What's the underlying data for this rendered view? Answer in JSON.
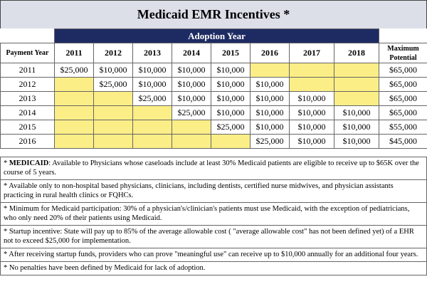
{
  "title": "Medicaid EMR Incentives *",
  "table": {
    "adoption_header": "Adoption Year",
    "payment_year_header": "Payment Year",
    "maximum_potential_header": "Maximum Potential",
    "adoption_years": [
      "2011",
      "2012",
      "2013",
      "2014",
      "2015",
      "2016",
      "2017",
      "2018"
    ],
    "rows": [
      {
        "year": "2011",
        "cells": [
          "$25,000",
          "$10,000",
          "$10,000",
          "$10,000",
          "$10,000",
          "",
          "",
          ""
        ],
        "max": "$65,000"
      },
      {
        "year": "2012",
        "cells": [
          "",
          "$25,000",
          "$10,000",
          "$10,000",
          "$10,000",
          "$10,000",
          "",
          ""
        ],
        "max": "$65,000"
      },
      {
        "year": "2013",
        "cells": [
          "",
          "",
          "$25,000",
          "$10,000",
          "$10,000",
          "$10,000",
          "$10,000",
          ""
        ],
        "max": "$65,000"
      },
      {
        "year": "2014",
        "cells": [
          "",
          "",
          "",
          "$25,000",
          "$10,000",
          "$10,000",
          "$10,000",
          "$10,000"
        ],
        "max": "$65,000"
      },
      {
        "year": "2015",
        "cells": [
          "",
          "",
          "",
          "",
          "$25,000",
          "$10,000",
          "$10,000",
          "$10,000"
        ],
        "max": "$55,000"
      },
      {
        "year": "2016",
        "cells": [
          "",
          "",
          "",
          "",
          "",
          "$25,000",
          "$10,000",
          "$10,000"
        ],
        "max": "$45,000"
      }
    ]
  },
  "notes": [
    {
      "prefix": "* ",
      "bold": "MEDICAID",
      "text": ": Available to Physicians whose caseloads include at least 30% Medicaid patients are eligible to receive up to $65K over the course of 5 years."
    },
    {
      "prefix": "* ",
      "bold": "",
      "text": "Available only to non-hospital based physicians, clinicians, including dentists, certified nurse midwives, and physician assistants practicing in rural health clinics or FQHCs."
    },
    {
      "prefix": "* ",
      "bold": "",
      "text": "Minimum for Medicaid participation: 30% of a physician's/clinician's patients must use Medicaid, with the exception of pediatricians, who only need 20% of their patients using Medicaid."
    },
    {
      "prefix": "* ",
      "bold": "",
      "text": "Startup incentive: State will pay up to 85% of the average allowable cost ( \"average allowable cost\" has not been defined yet) of a EHR not to exceed $25,000 for implementation."
    },
    {
      "prefix": "* ",
      "bold": "",
      "text": "After receiving startup funds, providers who can prove \"meaningful use\" can receive up to $10,000 annually for an additional four years."
    },
    {
      "prefix": "* ",
      "bold": "",
      "text": "No penalties have been defined by Medicaid for lack of adoption."
    }
  ],
  "colors": {
    "header_bg": "#1e2b63",
    "highlight": "#fcee86",
    "title_bg": "#dcdfe8"
  }
}
